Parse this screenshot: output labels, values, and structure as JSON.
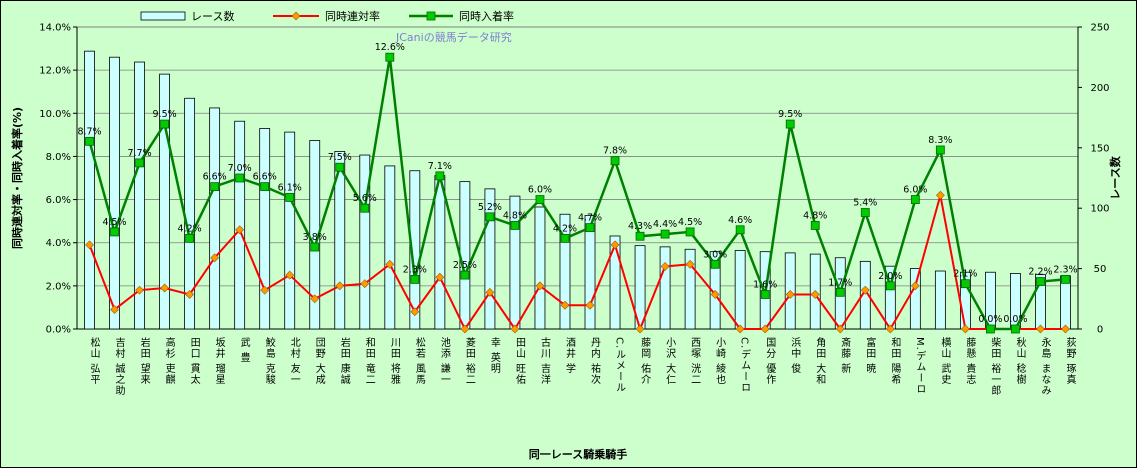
{
  "chart_data": {
    "type": "bar",
    "title": "",
    "watermark": "JCaniの競馬データ研究",
    "xlabel": "同一レース騎乗騎手",
    "ylabel_left": "同時連対率・同時入着率(%)",
    "ylabel_right": "レース数",
    "ylim_left": [
      0,
      14
    ],
    "ylim_right": [
      0,
      250
    ],
    "left_ticks": [
      "0.0%",
      "2.0%",
      "4.0%",
      "6.0%",
      "8.0%",
      "10.0%",
      "12.0%",
      "14.0%"
    ],
    "right_ticks": [
      "0",
      "50",
      "100",
      "150",
      "200",
      "250"
    ],
    "legend_position": "top",
    "colors": {
      "bar_fill": "#ccffff",
      "bar_edge": "#000000",
      "line1": "#ff0000",
      "marker1": "#ff9900",
      "line2": "#008000",
      "marker2": "#00cc00",
      "background": "#ccffcc"
    },
    "categories": [
      "松山 弘平",
      "吉村 誠之助",
      "岩田 望来",
      "高杉 吏麒",
      "田口 貫太",
      "坂井 瑠星",
      "武 豊",
      "鮫島 克駿",
      "北村 友一",
      "団野 大成",
      "岩田 康誠",
      "和田 竜二",
      "川田 将雅",
      "松若 風馬",
      "池添 謙一",
      "菱田 裕二",
      "幸 英明",
      "田山 旺佑",
      "古川 吉洋",
      "酒井 学",
      "丹内 祐次",
      "C.ルメール",
      "藤岡 佑介",
      "小沢 大仁",
      "西塚 洸二",
      "小崎 綾也",
      "C.デムーロ",
      "国分 優作",
      "浜中 俊",
      "角田 大和",
      "斎藤 新",
      "富田 暁",
      "和田 陽希",
      "M.デムーロ",
      "横山 武史",
      "藤懸 貴志",
      "柴田 裕一郎",
      "秋山 稔樹",
      "永島 まなみ",
      "荻野 琢真"
    ],
    "series": [
      {
        "name": "レース数",
        "type": "bar",
        "axis": "right",
        "values": [
          230,
          225,
          221,
          211,
          191,
          183,
          172,
          166,
          163,
          156,
          147,
          144,
          135,
          131,
          127,
          122,
          116,
          110,
          101,
          95,
          94,
          77,
          69,
          68,
          66,
          64,
          65,
          64,
          63,
          62,
          59,
          56,
          52,
          50,
          48,
          47,
          47,
          46,
          45,
          44
        ]
      },
      {
        "name": "同時連対率",
        "type": "line",
        "axis": "left",
        "values": [
          3.9,
          0.9,
          1.8,
          1.9,
          1.6,
          3.3,
          4.6,
          1.8,
          2.5,
          1.4,
          2.0,
          2.1,
          3.0,
          0.8,
          2.4,
          0.0,
          1.7,
          0.0,
          2.0,
          1.1,
          1.1,
          3.9,
          0.0,
          2.9,
          3.0,
          1.6,
          0.0,
          0.0,
          1.6,
          1.6,
          0.0,
          1.8,
          0.0,
          2.0,
          6.2,
          0.0,
          0.0,
          0.0,
          0.0,
          0.0
        ]
      },
      {
        "name": "同時入着率",
        "type": "line",
        "axis": "left",
        "values": [
          8.7,
          4.5,
          7.7,
          9.5,
          4.2,
          6.6,
          7.0,
          6.6,
          6.1,
          3.8,
          7.5,
          5.6,
          12.6,
          2.3,
          7.1,
          2.5,
          5.2,
          4.8,
          6.0,
          4.2,
          4.7,
          7.8,
          4.3,
          4.4,
          4.5,
          3.0,
          4.6,
          1.6,
          9.5,
          4.8,
          1.7,
          5.4,
          2.0,
          6.0,
          8.3,
          2.1,
          0.0,
          0.0,
          2.2,
          2.3
        ]
      }
    ],
    "data_labels": [
      "8.7%",
      "4.5%",
      "7.7%",
      "9.5%",
      "4.2%",
      "6.6%",
      "7.0%",
      "6.6%",
      "6.1%",
      "3.8%",
      "7.5%",
      "5.6%",
      "12.6%",
      "2.3%",
      "7.1%",
      "2.5%",
      "5.2%",
      "4.8%",
      "6.0%",
      "4.2%",
      "4.7%",
      "7.8%",
      "4.3%",
      "4.4%",
      "4.5%",
      "3.0%",
      "4.6%",
      "1.6%",
      "9.5%",
      "4.8%",
      "1.7%",
      "5.4%",
      "2.0%",
      "6.0%",
      "8.3%",
      "2.1%",
      "0.0%",
      "0.0%",
      "2.2%",
      "2.3%"
    ]
  }
}
